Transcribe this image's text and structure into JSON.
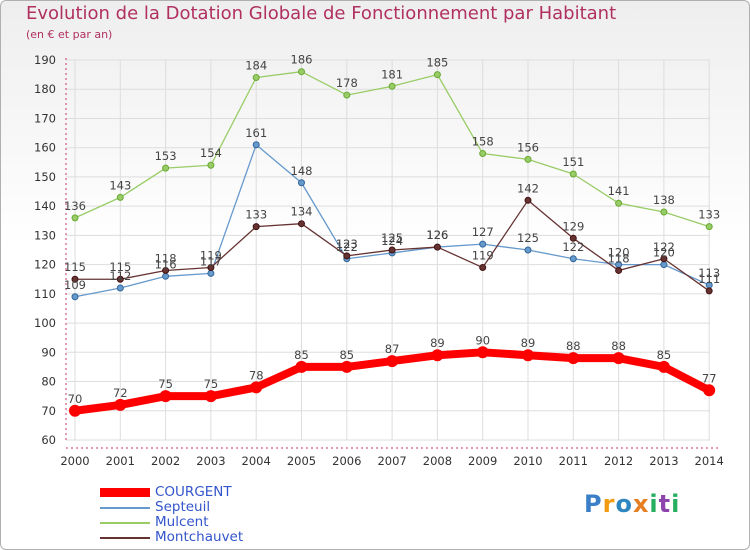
{
  "chart_data": {
    "type": "line",
    "title": "Evolution de la Dotation Globale de Fonctionnement par Habitant",
    "subtitle": "(en € et par an)",
    "x": [
      "2000",
      "2001",
      "2002",
      "2003",
      "2004",
      "2005",
      "2006",
      "2007",
      "2008",
      "2009",
      "2010",
      "2011",
      "2012",
      "2013",
      "2014"
    ],
    "ylim": [
      60,
      190
    ],
    "yticks": [
      60,
      70,
      80,
      90,
      100,
      110,
      120,
      130,
      140,
      150,
      160,
      170,
      180,
      190
    ],
    "grid": true,
    "legend_position": "bottom-left",
    "series": [
      {
        "name": "COURGENT",
        "color": "#ff0000",
        "values": [
          70,
          72,
          75,
          75,
          78,
          85,
          85,
          87,
          89,
          90,
          89,
          88,
          88,
          85,
          77
        ],
        "labels": [
          "70",
          "72",
          "75",
          "75",
          "78",
          "85",
          "85",
          "87",
          "89",
          "90",
          "89",
          "88",
          "88",
          "85",
          "77"
        ]
      },
      {
        "name": "Septeuil",
        "color": "#6699cc",
        "values": [
          109,
          112,
          116,
          117,
          161,
          148,
          122,
          124,
          126,
          127,
          125,
          122,
          120,
          120,
          113
        ],
        "labels": [
          "109",
          "112",
          "116",
          "117",
          "161",
          "148",
          "122",
          "124",
          "126",
          "127",
          "125",
          "122",
          "120",
          "120",
          "113"
        ]
      },
      {
        "name": "Mulcent",
        "color": "#99cc66",
        "values": [
          136,
          143,
          153,
          154,
          184,
          186,
          178,
          181,
          185,
          158,
          156,
          151,
          141,
          138,
          133
        ],
        "labels": [
          "136",
          "143",
          "153",
          "154",
          "184",
          "186",
          "178",
          "181",
          "185",
          "158",
          "156",
          "151",
          "141",
          "138",
          "133"
        ]
      },
      {
        "name": "Montchauvet",
        "color": "#663333",
        "values": [
          115,
          115,
          118,
          119,
          133,
          134,
          123,
          125,
          126,
          119,
          142,
          129,
          118,
          122,
          111
        ],
        "labels": [
          "115",
          "115",
          "118",
          "119",
          "133",
          "134",
          "123",
          "125",
          "126",
          "119",
          "142",
          "129",
          "118",
          "122",
          "111"
        ]
      }
    ]
  },
  "logo": {
    "text": "Proxiti",
    "letters": [
      {
        "char": "P",
        "color": "#3a7fc8"
      },
      {
        "char": "r",
        "color": "#f39c12"
      },
      {
        "char": "o",
        "color": "#2e86c1"
      },
      {
        "char": "x",
        "color": "#e67e22"
      },
      {
        "char": "i",
        "color": "#27ae60"
      },
      {
        "char": "t",
        "color": "#8e44ad"
      },
      {
        "char": "i",
        "color": "#27ae60"
      }
    ]
  }
}
